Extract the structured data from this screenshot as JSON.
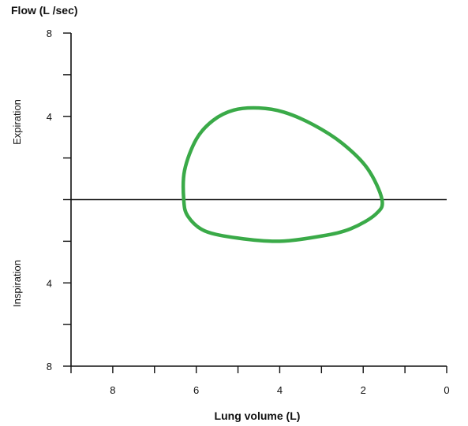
{
  "chart_data": {
    "type": "line",
    "title": "",
    "ylabel": "Flow (L /sec)",
    "xlabel": "Lung volume (L)",
    "upper_label": "Expiration",
    "lower_label": "Inspiration",
    "xlim": [
      9,
      0
    ],
    "ylim": [
      -8,
      8
    ],
    "x_tick_values": [
      9,
      8,
      7,
      6,
      5,
      4,
      3,
      2,
      1,
      0
    ],
    "x_tick_labels": [
      {
        "value": 8,
        "text": "8"
      },
      {
        "value": 6,
        "text": "6"
      },
      {
        "value": 4,
        "text": "4"
      },
      {
        "value": 2,
        "text": "2"
      },
      {
        "value": 0,
        "text": "0"
      }
    ],
    "y_tick_values": [
      8,
      6,
      4,
      2,
      0,
      -2,
      -4,
      -6,
      -8
    ],
    "y_tick_labels": [
      {
        "value": 8,
        "text": "8"
      },
      {
        "value": 4,
        "text": "4"
      },
      {
        "value": -4,
        "text": "4"
      },
      {
        "value": -8,
        "text": "8"
      }
    ],
    "zero_line": 0,
    "grid": false,
    "series": [
      {
        "color": "#3aaa48",
        "closed": true,
        "points": [
          [
            6.3,
            0.0
          ],
          [
            6.28,
            1.4
          ],
          [
            6.0,
            2.9
          ],
          [
            5.6,
            3.8
          ],
          [
            5.1,
            4.3
          ],
          [
            4.5,
            4.4
          ],
          [
            3.9,
            4.2
          ],
          [
            3.2,
            3.6
          ],
          [
            2.5,
            2.7
          ],
          [
            1.9,
            1.5
          ],
          [
            1.55,
            0.0
          ],
          [
            1.7,
            -0.7
          ],
          [
            2.3,
            -1.4
          ],
          [
            3.0,
            -1.75
          ],
          [
            4.0,
            -2.0
          ],
          [
            5.0,
            -1.85
          ],
          [
            5.8,
            -1.5
          ],
          [
            6.2,
            -0.8
          ]
        ]
      }
    ]
  }
}
